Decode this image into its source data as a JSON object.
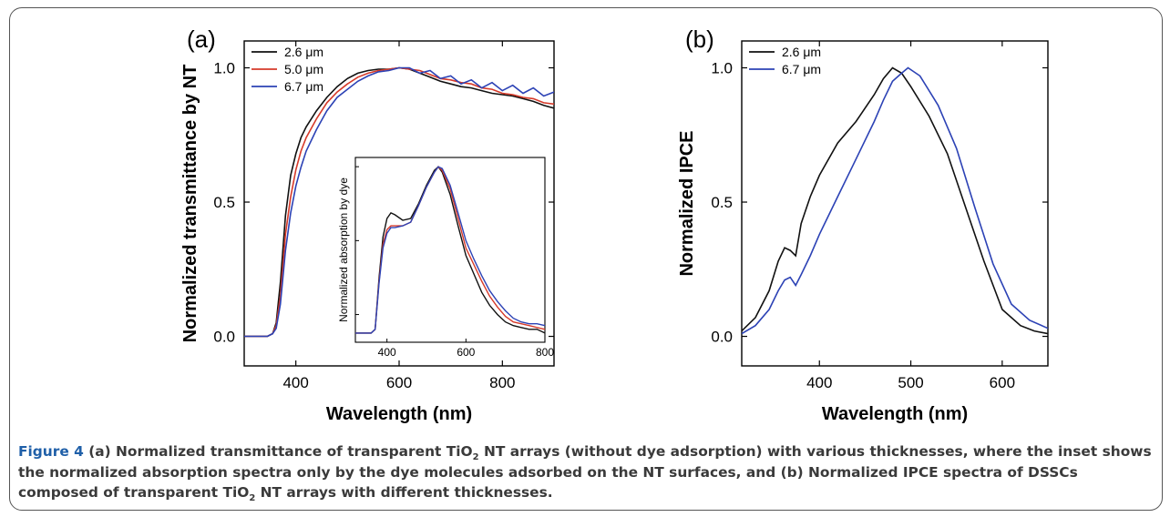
{
  "chart_data": [
    {
      "panel": "(a)",
      "type": "line",
      "xlabel": "Wavelength (nm)",
      "ylabel": "Normalized transmittance by NT",
      "xlim": [
        300,
        900
      ],
      "ylim": [
        -0.11,
        1.1
      ],
      "xticks": [
        400,
        600,
        800
      ],
      "yticks": [
        0.0,
        0.5,
        1.0
      ],
      "ytick_labels": [
        "0.0",
        "0.5",
        "1.0"
      ],
      "legend_position": "top-left",
      "series": [
        {
          "name": "2.6 μm",
          "color": "#111111",
          "x": [
            300,
            345,
            355,
            362,
            370,
            380,
            390,
            400,
            410,
            420,
            440,
            460,
            480,
            500,
            520,
            540,
            560,
            580,
            600,
            620,
            640,
            660,
            680,
            700,
            720,
            740,
            760,
            780,
            800,
            820,
            840,
            860,
            880,
            900
          ],
          "y": [
            0.0,
            0.0,
            0.01,
            0.05,
            0.2,
            0.45,
            0.6,
            0.68,
            0.74,
            0.78,
            0.84,
            0.89,
            0.93,
            0.96,
            0.98,
            0.99,
            0.995,
            0.995,
            1.0,
            0.995,
            0.98,
            0.965,
            0.95,
            0.94,
            0.93,
            0.925,
            0.915,
            0.905,
            0.9,
            0.895,
            0.885,
            0.875,
            0.86,
            0.85
          ]
        },
        {
          "name": "5.0 μm",
          "color": "#d63a2a",
          "x": [
            300,
            345,
            355,
            362,
            370,
            380,
            390,
            400,
            410,
            420,
            440,
            460,
            480,
            500,
            520,
            540,
            560,
            580,
            600,
            620,
            640,
            660,
            680,
            700,
            720,
            740,
            760,
            780,
            800,
            820,
            840,
            860,
            880,
            900
          ],
          "y": [
            0.0,
            0.0,
            0.01,
            0.04,
            0.15,
            0.38,
            0.52,
            0.62,
            0.69,
            0.74,
            0.81,
            0.87,
            0.91,
            0.94,
            0.965,
            0.98,
            0.99,
            0.995,
            1.0,
            0.995,
            0.99,
            0.975,
            0.96,
            0.955,
            0.945,
            0.94,
            0.925,
            0.92,
            0.905,
            0.9,
            0.89,
            0.885,
            0.87,
            0.865
          ]
        },
        {
          "name": "6.7 μm",
          "color": "#2c42b5",
          "x": [
            300,
            345,
            355,
            362,
            370,
            380,
            390,
            400,
            410,
            420,
            440,
            460,
            480,
            500,
            520,
            540,
            560,
            580,
            600,
            620,
            640,
            660,
            680,
            700,
            720,
            740,
            760,
            780,
            800,
            820,
            840,
            860,
            880,
            900
          ],
          "y": [
            0.0,
            0.0,
            0.01,
            0.03,
            0.12,
            0.32,
            0.46,
            0.56,
            0.63,
            0.69,
            0.77,
            0.84,
            0.89,
            0.92,
            0.95,
            0.97,
            0.985,
            0.99,
            1.0,
            1.0,
            0.98,
            0.99,
            0.96,
            0.97,
            0.94,
            0.955,
            0.925,
            0.945,
            0.915,
            0.935,
            0.905,
            0.925,
            0.895,
            0.91
          ]
        }
      ],
      "inset": {
        "type": "line",
        "ylabel": "Normalized absorption by dye",
        "xlim": [
          320,
          800
        ],
        "ylim": [
          0.05,
          1.05
        ],
        "xticks": [
          400,
          600,
          800
        ],
        "series": [
          {
            "name": "2.6 μm",
            "color": "#111111",
            "x": [
              320,
              360,
              370,
              380,
              390,
              400,
              410,
              420,
              440,
              460,
              480,
              500,
              520,
              530,
              540,
              560,
              580,
              600,
              620,
              640,
              660,
              680,
              700,
              720,
              740,
              760,
              780,
              800
            ],
            "y": [
              0.1,
              0.1,
              0.12,
              0.4,
              0.62,
              0.72,
              0.75,
              0.74,
              0.71,
              0.72,
              0.8,
              0.9,
              0.98,
              1.0,
              0.97,
              0.85,
              0.68,
              0.52,
              0.42,
              0.32,
              0.25,
              0.2,
              0.16,
              0.14,
              0.13,
              0.12,
              0.12,
              0.1
            ]
          },
          {
            "name": "5.0 μm",
            "color": "#d63a2a",
            "x": [
              320,
              360,
              370,
              380,
              390,
              400,
              410,
              420,
              440,
              460,
              480,
              500,
              520,
              530,
              540,
              560,
              580,
              600,
              620,
              640,
              660,
              680,
              700,
              720,
              740,
              760,
              780,
              800
            ],
            "y": [
              0.1,
              0.1,
              0.12,
              0.38,
              0.58,
              0.66,
              0.68,
              0.68,
              0.68,
              0.7,
              0.79,
              0.89,
              0.97,
              1.0,
              0.98,
              0.88,
              0.72,
              0.56,
              0.47,
              0.38,
              0.3,
              0.24,
              0.19,
              0.16,
              0.15,
              0.14,
              0.13,
              0.12
            ]
          },
          {
            "name": "6.7 μm",
            "color": "#2c42b5",
            "x": [
              320,
              360,
              370,
              380,
              390,
              400,
              410,
              420,
              440,
              460,
              480,
              500,
              520,
              530,
              540,
              560,
              580,
              600,
              620,
              640,
              660,
              680,
              700,
              720,
              740,
              760,
              780,
              800
            ],
            "y": [
              0.1,
              0.1,
              0.12,
              0.37,
              0.56,
              0.64,
              0.67,
              0.67,
              0.68,
              0.7,
              0.79,
              0.89,
              0.97,
              1.0,
              0.99,
              0.9,
              0.75,
              0.6,
              0.5,
              0.41,
              0.33,
              0.27,
              0.22,
              0.18,
              0.16,
              0.15,
              0.15,
              0.14
            ]
          }
        ]
      }
    },
    {
      "panel": "(b)",
      "type": "line",
      "xlabel": "Wavelength (nm)",
      "ylabel": "Normalized IPCE",
      "xlim": [
        315,
        650
      ],
      "ylim": [
        -0.11,
        1.1
      ],
      "xticks": [
        400,
        500,
        600
      ],
      "yticks": [
        0.0,
        0.5,
        1.0
      ],
      "ytick_labels": [
        "0.0",
        "0.5",
        "1.0"
      ],
      "legend_position": "top-left",
      "series": [
        {
          "name": "2.6 μm",
          "color": "#111111",
          "x": [
            315,
            330,
            345,
            355,
            362,
            368,
            374,
            380,
            390,
            400,
            420,
            440,
            460,
            470,
            480,
            490,
            500,
            520,
            540,
            560,
            580,
            600,
            620,
            635,
            650
          ],
          "y": [
            0.02,
            0.07,
            0.17,
            0.28,
            0.33,
            0.32,
            0.3,
            0.42,
            0.52,
            0.6,
            0.72,
            0.8,
            0.9,
            0.96,
            1.0,
            0.98,
            0.93,
            0.82,
            0.68,
            0.48,
            0.28,
            0.1,
            0.04,
            0.02,
            0.01
          ]
        },
        {
          "name": "6.7 μm",
          "color": "#2c42b5",
          "x": [
            315,
            330,
            345,
            355,
            362,
            368,
            374,
            380,
            390,
            400,
            420,
            440,
            460,
            470,
            480,
            490,
            497,
            510,
            530,
            550,
            570,
            590,
            610,
            630,
            650
          ],
          "y": [
            0.01,
            0.04,
            0.1,
            0.17,
            0.21,
            0.22,
            0.19,
            0.23,
            0.3,
            0.38,
            0.52,
            0.66,
            0.8,
            0.88,
            0.95,
            0.98,
            1.0,
            0.97,
            0.86,
            0.7,
            0.48,
            0.27,
            0.12,
            0.06,
            0.03
          ]
        }
      ]
    }
  ],
  "caption": {
    "figure_label": "Figure 4",
    "part_a_label": "(a)",
    "part1": " Normalized transmittance of transparent TiO",
    "sub1": "2",
    "part2": " NT arrays (without dye adsorption) with various thicknesses, where the inset shows the normalized absorption spectra only by the dye molecules adsorbed on the NT surfaces, and (b) Normalized IPCE spectra of DSSCs composed of transparent TiO",
    "sub2": "2",
    "part3": " NT arrays with different thicknesses."
  }
}
